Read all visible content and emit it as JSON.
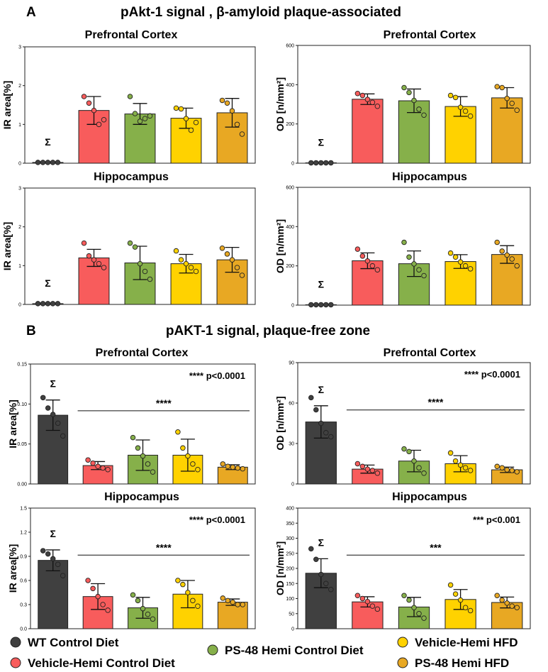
{
  "section_a": {
    "label": "A",
    "title": "pAkt-1 signal , β-amyloid plaque-associated"
  },
  "section_b": {
    "label": "B",
    "title": "pAKT-1 signal, plaque-free zone"
  },
  "colors": {
    "WT Control Diet": "#404040",
    "Vehicle-Hemi Control Diet": "#f85c5c",
    "PS-48 Hemi Control Diet": "#86b04a",
    "Vehicle-Hemi HFD": "#ffd200",
    "PS-48 Hemi HFD": "#e8a823"
  },
  "legend": {
    "items": [
      {
        "label": "WT Control Diet"
      },
      {
        "label": "Vehicle-Hemi Control Diet"
      },
      {
        "label": "PS-48 Hemi Control Diet"
      },
      {
        "label": "Vehicle-Hemi HFD"
      },
      {
        "label": "PS-48 Hemi HFD"
      }
    ]
  },
  "chart_data": [
    {
      "type": "bar",
      "section": "A",
      "title": "Prefrontal Cortex",
      "ylabel": "IR area[%]",
      "ylim": [
        0,
        3
      ],
      "yticks": [
        "0",
        "1",
        "2",
        "3"
      ],
      "categories": [
        "WT Control Diet",
        "Vehicle-Hemi Control Diet",
        "PS-48 Hemi Control Diet",
        "Vehicle-Hemi HFD",
        "PS-48 Hemi HFD"
      ],
      "values": [
        0.02,
        1.36,
        1.27,
        1.16,
        1.3
      ],
      "sd": [
        0,
        0.36,
        0.27,
        0.26,
        0.37
      ],
      "points": [
        [
          0.02,
          0.02,
          0.02,
          0.02,
          0.02
        ],
        [
          1.72,
          1.55,
          1.36,
          1.0,
          1.12
        ],
        [
          1.72,
          1.28,
          1.08,
          1.15,
          1.22
        ],
        [
          1.42,
          1.4,
          1.15,
          0.85,
          1.05
        ],
        [
          1.62,
          1.55,
          1.35,
          1.0,
          0.75
        ]
      ],
      "symbol": "Σ",
      "annotation": "",
      "bracket_label": ""
    },
    {
      "type": "bar",
      "section": "A",
      "title": "Prefrontal Cortex",
      "ylabel": "OD [n/mm²]",
      "ylim": [
        0,
        600
      ],
      "yticks": [
        "0",
        "200",
        "400",
        "600"
      ],
      "categories": [
        "WT Control Diet",
        "Vehicle-Hemi Control Diet",
        "PS-48 Hemi Control Diet",
        "Vehicle-Hemi HFD",
        "PS-48 Hemi HFD"
      ],
      "values": [
        2,
        326,
        318,
        289,
        333
      ],
      "sd": [
        0,
        27,
        60,
        50,
        52
      ],
      "points": [
        [
          2,
          2,
          2,
          2,
          2
        ],
        [
          355,
          345,
          325,
          310,
          290
        ],
        [
          385,
          360,
          320,
          275,
          245
        ],
        [
          345,
          335,
          285,
          265,
          240
        ],
        [
          390,
          385,
          330,
          305,
          270
        ]
      ],
      "symbol": "Σ",
      "annotation": "",
      "bracket_label": ""
    },
    {
      "type": "bar",
      "section": "A",
      "title": "Hippocampus",
      "ylabel": "IR area[%]",
      "ylim": [
        0,
        3
      ],
      "yticks": [
        "0",
        "1",
        "2",
        "3"
      ],
      "categories": [
        "WT Control Diet",
        "Vehicle-Hemi Control Diet",
        "PS-48 Hemi Control Diet",
        "Vehicle-Hemi HFD",
        "PS-48 Hemi HFD"
      ],
      "values": [
        0.02,
        1.2,
        1.07,
        1.05,
        1.15
      ],
      "sd": [
        0,
        0.22,
        0.43,
        0.24,
        0.32
      ],
      "points": [
        [
          0.02,
          0.02,
          0.02,
          0.02,
          0.02
        ],
        [
          1.58,
          1.25,
          1.15,
          1.05,
          0.95
        ],
        [
          1.58,
          1.48,
          1.05,
          0.85,
          0.65
        ],
        [
          1.38,
          1.15,
          1.05,
          0.95,
          0.85
        ],
        [
          1.45,
          1.3,
          1.15,
          0.95,
          0.75
        ]
      ],
      "symbol": "Σ",
      "annotation": "",
      "bracket_label": ""
    },
    {
      "type": "bar",
      "section": "A",
      "title": "Hippocampus",
      "ylabel": "OD [n/mm²]",
      "ylim": [
        0,
        600
      ],
      "yticks": [
        "0",
        "200",
        "400",
        "600"
      ],
      "categories": [
        "WT Control Diet",
        "Vehicle-Hemi Control Diet",
        "PS-48 Hemi Control Diet",
        "Vehicle-Hemi HFD",
        "PS-48 Hemi HFD"
      ],
      "values": [
        2,
        226,
        211,
        222,
        258
      ],
      "sd": [
        0,
        40,
        65,
        35,
        45
      ],
      "points": [
        [
          2,
          2,
          2,
          2,
          2
        ],
        [
          285,
          250,
          225,
          200,
          180
        ],
        [
          320,
          245,
          210,
          180,
          150
        ],
        [
          265,
          245,
          220,
          200,
          185
        ],
        [
          320,
          275,
          255,
          235,
          200
        ]
      ],
      "symbol": "Σ",
      "annotation": "",
      "bracket_label": ""
    },
    {
      "type": "bar",
      "section": "B",
      "title": "Prefrontal Cortex",
      "ylabel": "IR area[%]",
      "ylim": [
        0,
        0.15
      ],
      "yticks": [
        "0.00",
        "0.05",
        "0.10",
        "0.15"
      ],
      "categories": [
        "WT Control Diet",
        "Vehicle-Hemi Control Diet",
        "PS-48 Hemi Control Diet",
        "Vehicle-Hemi HFD",
        "PS-48 Hemi HFD"
      ],
      "values": [
        0.086,
        0.023,
        0.036,
        0.036,
        0.021
      ],
      "sd": [
        0.019,
        0.005,
        0.019,
        0.02,
        0.003
      ],
      "points": [
        [
          0.108,
          0.095,
          0.087,
          0.076,
          0.06
        ],
        [
          0.03,
          0.026,
          0.022,
          0.02,
          0.018
        ],
        [
          0.058,
          0.045,
          0.035,
          0.025,
          0.015
        ],
        [
          0.065,
          0.045,
          0.035,
          0.025,
          0.018
        ],
        [
          0.025,
          0.022,
          0.021,
          0.02,
          0.019
        ]
      ],
      "symbol": "Σ",
      "annotation": "**** p<0.0001",
      "bracket_label": "****"
    },
    {
      "type": "bar",
      "section": "B",
      "title": "Prefrontal Cortex",
      "ylabel": "OD [n/mm²]",
      "ylim": [
        0,
        90
      ],
      "yticks": [
        "0",
        "30",
        "60",
        "90"
      ],
      "categories": [
        "WT Control Diet",
        "Vehicle-Hemi Control Diet",
        "PS-48 Hemi Control Diet",
        "Vehicle-Hemi HFD",
        "PS-48 Hemi HFD"
      ],
      "values": [
        46,
        11,
        17,
        15,
        10.5
      ],
      "sd": [
        12,
        3,
        8,
        6,
        2
      ],
      "points": [
        [
          64,
          55,
          45,
          38,
          35
        ],
        [
          15,
          13,
          11,
          10,
          8
        ],
        [
          26,
          24,
          17,
          12,
          8
        ],
        [
          23,
          17,
          14,
          12,
          10
        ],
        [
          13,
          12,
          10.5,
          10,
          9
        ]
      ],
      "symbol": "Σ",
      "annotation": "**** p<0.0001",
      "bracket_label": "****"
    },
    {
      "type": "bar",
      "section": "B",
      "title": "Hippocampus",
      "ylabel": "IR area[%]",
      "ylim": [
        0,
        1.5
      ],
      "yticks": [
        "0.0",
        "0.3",
        "0.6",
        "0.9",
        "1.2",
        "1.5"
      ],
      "categories": [
        "WT Control Diet",
        "Vehicle-Hemi Control Diet",
        "PS-48 Hemi Control Diet",
        "Vehicle-Hemi HFD",
        "PS-48 Hemi HFD"
      ],
      "values": [
        0.85,
        0.4,
        0.26,
        0.43,
        0.33
      ],
      "sd": [
        0.13,
        0.16,
        0.13,
        0.17,
        0.04
      ],
      "points": [
        [
          0.97,
          0.93,
          0.87,
          0.8,
          0.66
        ],
        [
          0.6,
          0.5,
          0.4,
          0.3,
          0.23
        ],
        [
          0.42,
          0.35,
          0.25,
          0.18,
          0.12
        ],
        [
          0.6,
          0.55,
          0.45,
          0.35,
          0.28
        ],
        [
          0.38,
          0.35,
          0.33,
          0.3,
          0.3
        ]
      ],
      "symbol": "Σ",
      "annotation": "**** p<0.0001",
      "bracket_label": "****"
    },
    {
      "type": "bar",
      "section": "B",
      "title": "Hippocampus",
      "ylabel": "OD [n/mm²]",
      "ylim": [
        0,
        400
      ],
      "yticks": [
        "0",
        "50",
        "100",
        "150",
        "200",
        "250",
        "300",
        "350",
        "400"
      ],
      "categories": [
        "WT Control Diet",
        "Vehicle-Hemi Control Diet",
        "PS-48 Hemi Control Diet",
        "Vehicle-Hemi HFD",
        "PS-48 Hemi HFD"
      ],
      "values": [
        184,
        89,
        72,
        97,
        87
      ],
      "sd": [
        48,
        17,
        32,
        33,
        18
      ],
      "points": [
        [
          265,
          230,
          180,
          150,
          130
        ],
        [
          110,
          100,
          90,
          75,
          65
        ],
        [
          110,
          95,
          70,
          50,
          35
        ],
        [
          145,
          115,
          95,
          70,
          60
        ],
        [
          110,
          95,
          85,
          75,
          70
        ]
      ],
      "symbol": "Σ",
      "annotation": "*** p<0.001",
      "bracket_label": "***"
    }
  ]
}
